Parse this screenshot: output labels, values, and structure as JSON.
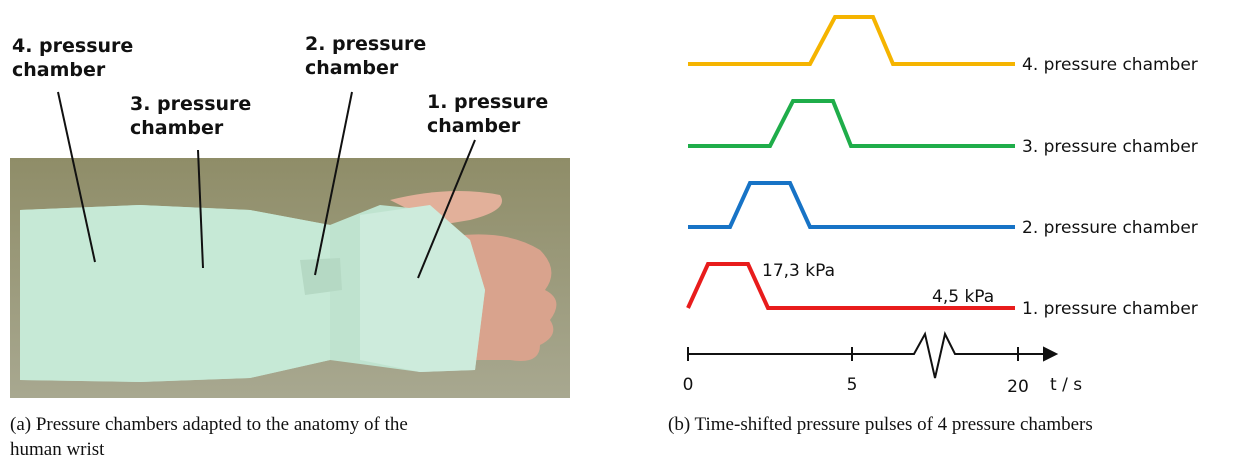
{
  "photo": {
    "labels": [
      "4. pressure\nchamber",
      "3. pressure\nchamber",
      "2. pressure\nchamber",
      "1. pressure\nchamber"
    ],
    "caption": "(a) Pressure chambers adapted to the anatomy of the human wrist"
  },
  "diagram": {
    "pulses": [
      "4. pressure chamber",
      "3. pressure chamber",
      "2. pressure chamber",
      "1. pressure chamber"
    ],
    "high_label": "17,3 kPa",
    "low_label": "4,5 kPa",
    "ticks": [
      "0",
      "5",
      "20"
    ],
    "axis_label": "t / s",
    "caption": "(b) Time-shifted pressure pulses of 4 pressure chambers"
  }
}
